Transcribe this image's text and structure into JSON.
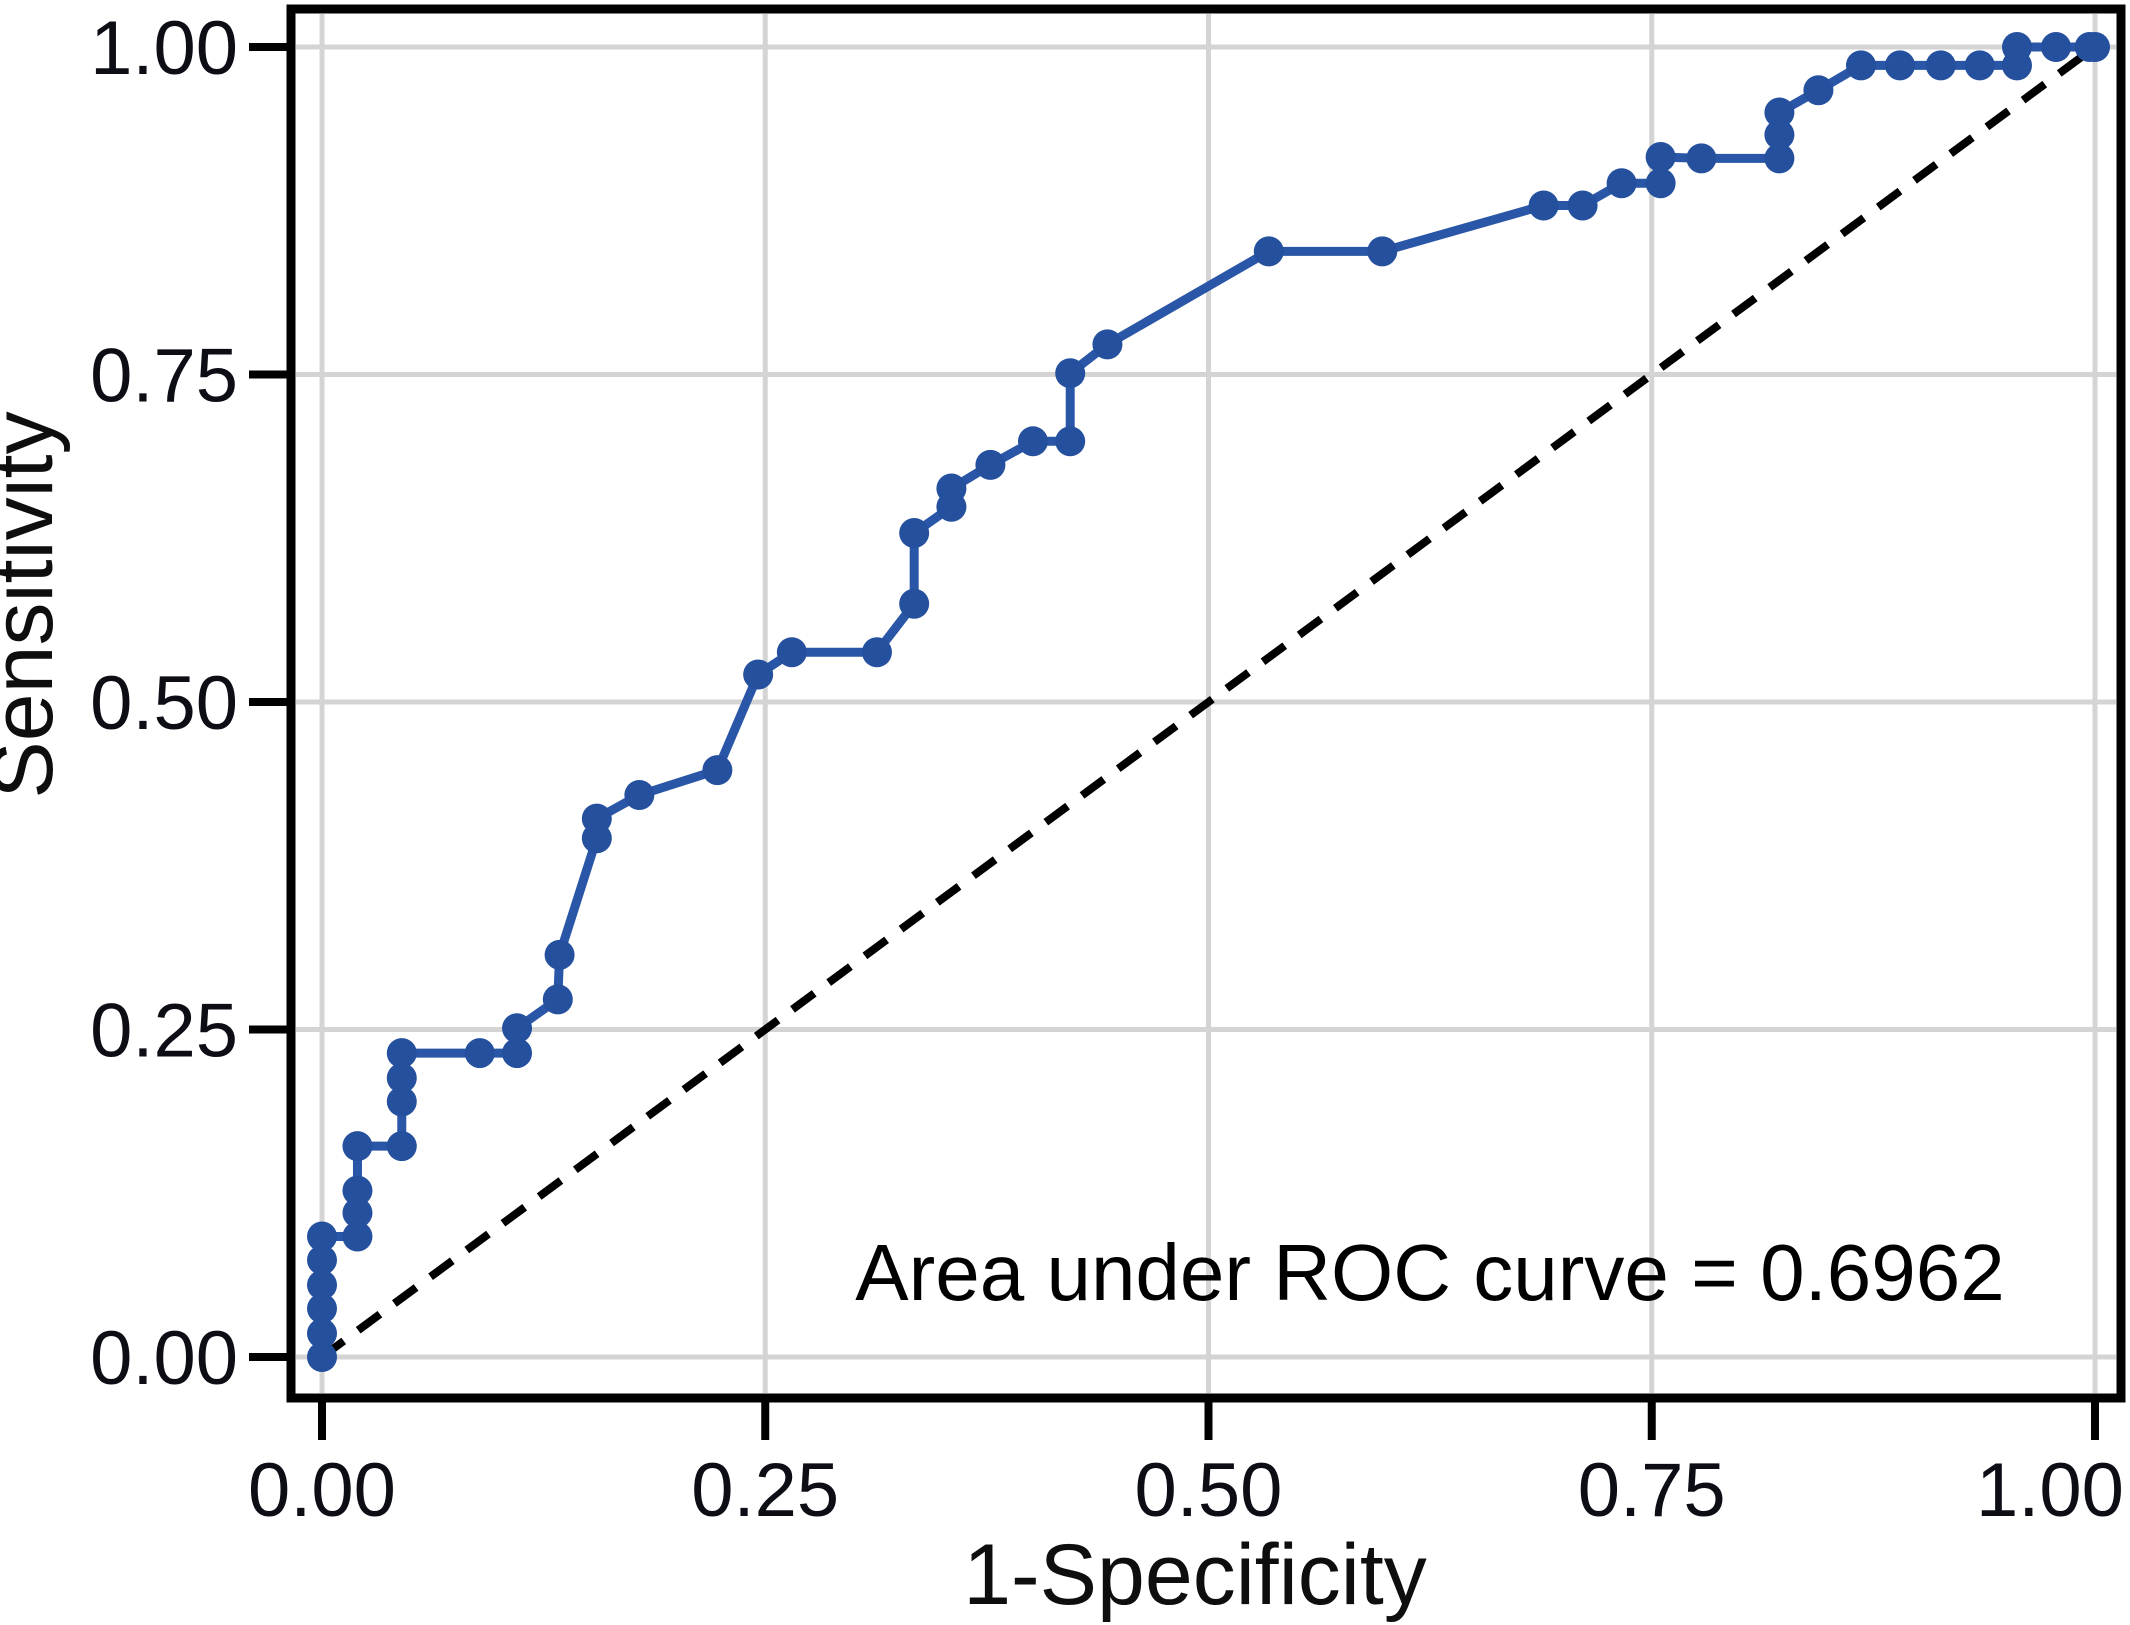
{
  "figure": {
    "background": "#ffffff"
  },
  "chart_data": {
    "type": "line",
    "title": "",
    "xlabel": "1-Specificity",
    "ylabel": "Sensitivity",
    "xlim": [
      0,
      1
    ],
    "ylim": [
      0,
      1
    ],
    "grid": true,
    "legend": "none",
    "tick_values": [
      0,
      0.25,
      0.5,
      0.75,
      1
    ],
    "tick_labels": [
      "0.00",
      "0.25",
      "0.50",
      "0.75",
      "1.00"
    ],
    "annotation": {
      "text": "Area under ROC curve = 0.6962",
      "x": 0.625,
      "y": 0.066
    },
    "series": [
      {
        "name": "ROC curve",
        "style": "solid-with-markers",
        "color": "#2a56a7",
        "marker_color": "#25509e",
        "points": [
          [
            0.0,
            0.0
          ],
          [
            0.0,
            0.018
          ],
          [
            0.0,
            0.037
          ],
          [
            0.0,
            0.055
          ],
          [
            0.0,
            0.074
          ],
          [
            0.0,
            0.092
          ],
          [
            0.02,
            0.092
          ],
          [
            0.02,
            0.11
          ],
          [
            0.02,
            0.127
          ],
          [
            0.02,
            0.161
          ],
          [
            0.045,
            0.161
          ],
          [
            0.045,
            0.195
          ],
          [
            0.045,
            0.213
          ],
          [
            0.045,
            0.232
          ],
          [
            0.089,
            0.232
          ],
          [
            0.11,
            0.232
          ],
          [
            0.11,
            0.251
          ],
          [
            0.133,
            0.273
          ],
          [
            0.134,
            0.307
          ],
          [
            0.155,
            0.396
          ],
          [
            0.155,
            0.411
          ],
          [
            0.179,
            0.429
          ],
          [
            0.223,
            0.448
          ],
          [
            0.246,
            0.521
          ],
          [
            0.265,
            0.538
          ],
          [
            0.313,
            0.538
          ],
          [
            0.334,
            0.575
          ],
          [
            0.334,
            0.629
          ],
          [
            0.355,
            0.649
          ],
          [
            0.355,
            0.663
          ],
          [
            0.377,
            0.681
          ],
          [
            0.401,
            0.699
          ],
          [
            0.422,
            0.699
          ],
          [
            0.422,
            0.751
          ],
          [
            0.443,
            0.773
          ],
          [
            0.534,
            0.844
          ],
          [
            0.598,
            0.844
          ],
          [
            0.689,
            0.879
          ],
          [
            0.711,
            0.879
          ],
          [
            0.733,
            0.896
          ],
          [
            0.755,
            0.896
          ],
          [
            0.755,
            0.916
          ],
          [
            0.778,
            0.915
          ],
          [
            0.822,
            0.915
          ],
          [
            0.822,
            0.933
          ],
          [
            0.822,
            0.95
          ],
          [
            0.844,
            0.967
          ],
          [
            0.868,
            0.986
          ],
          [
            0.89,
            0.986
          ],
          [
            0.913,
            0.986
          ],
          [
            0.935,
            0.986
          ],
          [
            0.956,
            0.986
          ],
          [
            0.956,
            1.0
          ],
          [
            0.978,
            1.0
          ],
          [
            0.997,
            1.0
          ],
          [
            1.0,
            1.0
          ]
        ]
      },
      {
        "name": "Reference diagonal",
        "style": "dashed",
        "color": "#000000",
        "points": [
          [
            0,
            0
          ],
          [
            1,
            1
          ]
        ]
      }
    ]
  },
  "style": {
    "grid_color": "#d4d4d4",
    "axis_color": "#000000",
    "plot_border_color": "#000000",
    "tick_label_color": "#0d0d16",
    "annotation_color": "#000000",
    "curve_color": "#2a56a7",
    "marker_color": "#25509e"
  }
}
